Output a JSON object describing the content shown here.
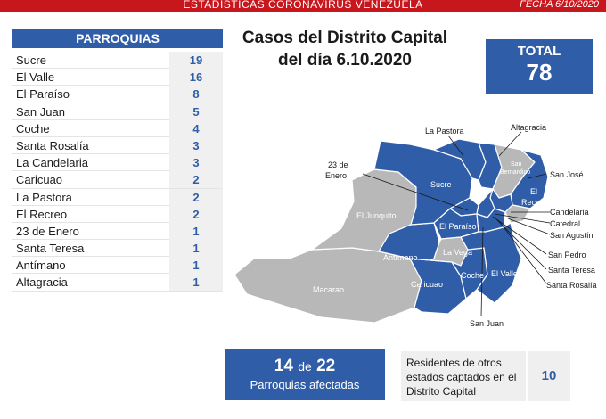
{
  "header": {
    "title": "ESTADISTICAS CORONAVIRUS VENEZUELA",
    "date": "FECHA 6/10/2020"
  },
  "parroquias": {
    "header": "PARROQUIAS",
    "items": [
      {
        "name": "Sucre",
        "value": "19"
      },
      {
        "name": "El Valle",
        "value": "16"
      },
      {
        "name": "El Paraíso",
        "value": "8"
      },
      {
        "name": "San Juan",
        "value": "5"
      },
      {
        "name": "Coche",
        "value": "4"
      },
      {
        "name": "Santa Rosalía",
        "value": "3"
      },
      {
        "name": "La Candelaria",
        "value": "3"
      },
      {
        "name": "Caricuao",
        "value": "2"
      },
      {
        "name": "La Pastora",
        "value": "2"
      },
      {
        "name": "El Recreo",
        "value": "2"
      },
      {
        "name": "23 de Enero",
        "value": "1"
      },
      {
        "name": "Santa Teresa",
        "value": "1"
      },
      {
        "name": "Antímano",
        "value": "1"
      },
      {
        "name": "Altagracia",
        "value": "1"
      }
    ]
  },
  "title": {
    "line1": "Casos del Distrito Capital",
    "line2": "del día 6.10.2020"
  },
  "total": {
    "label": "TOTAL",
    "value": "78"
  },
  "map": {
    "colors": {
      "affected": "#2f5da8",
      "unaffected": "#b8b8b8",
      "border": "#ffffff"
    },
    "inner_labels": {
      "sucre": "Sucre",
      "el_junquito": "El Junquito",
      "san_bernardino_1": "San",
      "san_bernardino_2": "Bernardino",
      "el_recreo_1": "El",
      "el_recreo_2": "Recreo",
      "el_paraiso": "El Paraíso",
      "antimano": "Antímano",
      "la_vega": "La Vega",
      "macarao": "Macarao",
      "caricuao": "Caricuao",
      "coche": "Coche",
      "el_valle": "El Valle"
    },
    "callouts": {
      "la_pastora": "La Pastora",
      "altagracia": "Altagracia",
      "enero_1": "23 de",
      "enero_2": "Enero",
      "san_jose": "San José",
      "candelaria": "Candelaria",
      "catedral": "Catedral",
      "san_agustin": "San Agustín",
      "san_pedro": "San Pedro",
      "santa_teresa": "Santa Teresa",
      "santa_rosalia": "Santa Rosalía",
      "san_juan": "San Juan"
    }
  },
  "affected": {
    "count": "14",
    "connector": "de",
    "total": "22",
    "label": "Parroquias afectadas"
  },
  "residents": {
    "line1": "Residentes de otros",
    "line2": "estados captados en el",
    "line3": "Distrito Capital",
    "value": "10"
  }
}
